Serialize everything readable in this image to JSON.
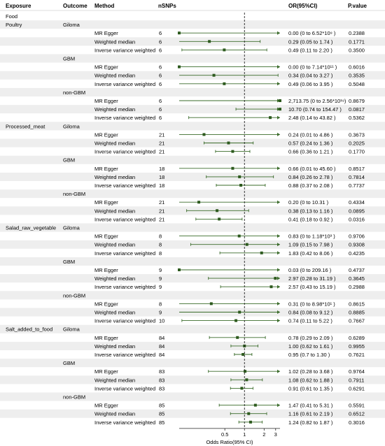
{
  "chart_data": {
    "type": "forest",
    "columns": {
      "exposure": "Exposure",
      "outcome": "Outcome",
      "method": "Method",
      "nsnps": "nSNPs",
      "or": "OR(95%CI)",
      "pvalue": "P.value"
    },
    "section_label": "Food",
    "xlabel": "Odds Ratio(95% CI)",
    "xticks": [
      0.5,
      1,
      2,
      3
    ],
    "xlim": [
      0.1,
      3.5
    ],
    "reference_line": 1,
    "colors": {
      "point": "#2d5a1e",
      "line": "#3a6b2a",
      "stripe": "#eeeeee"
    },
    "exposures": [
      {
        "name": "Poultry",
        "outcomes": [
          {
            "name": "Giloma",
            "rows": [
              {
                "method": "MR Egger",
                "nsnps": "6",
                "or_text": "0.00 (0 to  6.52*10⁹ )",
                "p": "0.2388",
                "est": 0.0,
                "lo": 0.0,
                "hi": 3.5,
                "hi_arrow": true
              },
              {
                "method": "Weighted median",
                "nsnps": "6",
                "or_text": "0.29 (0.05 to  1.74 )",
                "p": "0.1771",
                "est": 0.29,
                "lo": 0.05,
                "hi": 1.74,
                "hi_arrow": false
              },
              {
                "method": "Inverse variance weighted",
                "nsnps": "6",
                "or_text": "0.49 (0.11 to  2.20 )",
                "p": "0.3500",
                "est": 0.49,
                "lo": 0.11,
                "hi": 2.2,
                "hi_arrow": false
              }
            ]
          },
          {
            "name": "GBM",
            "rows": [
              {
                "method": "MR Egger",
                "nsnps": "6",
                "or_text": "0.00 (0 to  7.14*10¹¹ )",
                "p": "0.6016",
                "est": 0.0,
                "lo": 0.0,
                "hi": 3.5,
                "hi_arrow": true
              },
              {
                "method": "Weighted median",
                "nsnps": "6",
                "or_text": "0.34 (0.04 to  3.27 )",
                "p": "0.3535",
                "est": 0.34,
                "lo": 0.04,
                "hi": 3.27,
                "hi_arrow": false
              },
              {
                "method": "Inverse variance weighted",
                "nsnps": "6",
                "or_text": "0.49 (0.06 to  3.95 )",
                "p": "0.5048",
                "est": 0.49,
                "lo": 0.06,
                "hi": 3.95,
                "hi_arrow": true
              }
            ]
          },
          {
            "name": "non-GBM",
            "rows": [
              {
                "method": "MR Egger",
                "nsnps": "6",
                "or_text": "2,713.75 (0 to  2.56*10¹⁹)",
                "p": "0.8679",
                "est": 3.5,
                "lo": 0.0,
                "hi": 3.5,
                "hi_arrow": true
              },
              {
                "method": "Weighted median",
                "nsnps": "6",
                "or_text": "10.70 (0.74 to  154.47 )",
                "p": "0.0817",
                "est": 3.5,
                "lo": 0.74,
                "hi": 3.5,
                "hi_arrow": true
              },
              {
                "method": "Inverse variance weighted",
                "nsnps": "6",
                "or_text": "2.48 (0.14 to  43.82 )",
                "p": "0.5362",
                "est": 2.48,
                "lo": 0.14,
                "hi": 3.5,
                "hi_arrow": true
              }
            ]
          }
        ]
      },
      {
        "name": "Processed_meat",
        "outcomes": [
          {
            "name": "Giloma",
            "rows": [
              {
                "method": "MR Egger",
                "nsnps": "21",
                "or_text": "0.24 (0.01 to  4.86 )",
                "p": "0.3673",
                "est": 0.24,
                "lo": 0.01,
                "hi": 4.86,
                "hi_arrow": true
              },
              {
                "method": "Weighted median",
                "nsnps": "21",
                "or_text": "0.57 (0.24 to  1.36 )",
                "p": "0.2025",
                "est": 0.57,
                "lo": 0.24,
                "hi": 1.36,
                "hi_arrow": false
              },
              {
                "method": "Inverse variance weighted",
                "nsnps": "21",
                "or_text": "0.66 (0.36 to  1.21 )",
                "p": "0.1770",
                "est": 0.66,
                "lo": 0.36,
                "hi": 1.21,
                "hi_arrow": false
              }
            ]
          },
          {
            "name": "GBM",
            "rows": [
              {
                "method": "MR Egger",
                "nsnps": "18",
                "or_text": "0.66 (0.01 to  45.60 )",
                "p": "0.8517",
                "est": 0.66,
                "lo": 0.01,
                "hi": 45.6,
                "hi_arrow": true
              },
              {
                "method": "Weighted median",
                "nsnps": "18",
                "or_text": "0.84 (0.26 to  2.78 )",
                "p": "0.7814",
                "est": 0.84,
                "lo": 0.26,
                "hi": 2.78,
                "hi_arrow": false
              },
              {
                "method": "Inverse variance weighted",
                "nsnps": "18",
                "or_text": "0.88 (0.37 to  2.08 )",
                "p": "0.7737",
                "est": 0.88,
                "lo": 0.37,
                "hi": 2.08,
                "hi_arrow": false
              }
            ]
          },
          {
            "name": "non-GBM",
            "rows": [
              {
                "method": "MR Egger",
                "nsnps": "21",
                "or_text": "0.20 (0 to  10.31 )",
                "p": "0.4334",
                "est": 0.2,
                "lo": 0.0,
                "hi": 10.31,
                "hi_arrow": true
              },
              {
                "method": "Weighted median",
                "nsnps": "21",
                "or_text": "0.38 (0.13 to  1.16 )",
                "p": "0.0895",
                "est": 0.38,
                "lo": 0.13,
                "hi": 1.16,
                "hi_arrow": false
              },
              {
                "method": "Inverse variance weighted",
                "nsnps": "21",
                "or_text": "0.41 (0.18 to  0.92 )",
                "p": "0.0316",
                "est": 0.41,
                "lo": 0.18,
                "hi": 0.92,
                "hi_arrow": false
              }
            ]
          }
        ]
      },
      {
        "name": "Salad_raw_vegetable",
        "outcomes": [
          {
            "name": "Giloma",
            "rows": [
              {
                "method": "MR Egger",
                "nsnps": "8",
                "or_text": "0.83 (0 to  1.18*10³ )",
                "p": "0.9706",
                "est": 0.83,
                "lo": 0.0,
                "hi": 3.5,
                "hi_arrow": true
              },
              {
                "method": "Weighted median",
                "nsnps": "8",
                "or_text": "1.09 (0.15 to  7.98 )",
                "p": "0.9308",
                "est": 1.09,
                "lo": 0.15,
                "hi": 7.98,
                "hi_arrow": true
              },
              {
                "method": "Inverse variance weighted",
                "nsnps": "8",
                "or_text": "1.83 (0.42 to  8.06 )",
                "p": "0.4235",
                "est": 1.83,
                "lo": 0.42,
                "hi": 8.06,
                "hi_arrow": true
              }
            ]
          },
          {
            "name": "GBM",
            "rows": [
              {
                "method": "MR Egger",
                "nsnps": "9",
                "or_text": "0.03 (0 to  209.16 )",
                "p": "0.4737",
                "est": 0.03,
                "lo": 0.0,
                "hi": 209.16,
                "hi_arrow": true
              },
              {
                "method": "Weighted median",
                "nsnps": "9",
                "or_text": "2.97 (0.28 to  31.19 )",
                "p": "0.3645",
                "est": 2.97,
                "lo": 0.28,
                "hi": 31.19,
                "hi_arrow": true
              },
              {
                "method": "Inverse variance weighted",
                "nsnps": "9",
                "or_text": "2.57 (0.43 to  15.19 )",
                "p": "0.2988",
                "est": 2.57,
                "lo": 0.43,
                "hi": 15.19,
                "hi_arrow": true
              }
            ]
          },
          {
            "name": "non-GBM",
            "rows": [
              {
                "method": "MR Egger",
                "nsnps": "8",
                "or_text": "0.31 (0 to  8.98*10¹ )",
                "p": "0.8615",
                "est": 0.31,
                "lo": 0.0,
                "hi": 3.5,
                "hi_arrow": true
              },
              {
                "method": "Weighted median",
                "nsnps": "9",
                "or_text": "0.84 (0.08 to  9.12 )",
                "p": "0.8885",
                "est": 0.84,
                "lo": 0.08,
                "hi": 9.12,
                "hi_arrow": true
              },
              {
                "method": "Inverse variance weighted",
                "nsnps": "10",
                "or_text": "0.74 (0.11 to  5.22 )",
                "p": "0.7667",
                "est": 0.74,
                "lo": 0.11,
                "hi": 5.22,
                "hi_arrow": true
              }
            ]
          }
        ]
      },
      {
        "name": "Salt_added_to_food",
        "outcomes": [
          {
            "name": "Giloma",
            "rows": [
              {
                "method": "MR Egger",
                "nsnps": "84",
                "or_text": "0.78 (0.29 to  2.09 )",
                "p": "0.6289",
                "est": 0.78,
                "lo": 0.29,
                "hi": 2.09,
                "hi_arrow": false
              },
              {
                "method": "Weighted median",
                "nsnps": "84",
                "or_text": "1.00 (0.62 to  1.61 )",
                "p": "0.9955",
                "est": 1.0,
                "lo": 0.62,
                "hi": 1.61,
                "hi_arrow": false
              },
              {
                "method": "Inverse variance weighted",
                "nsnps": "84",
                "or_text": "0.95 (0.7 to  1.30 )",
                "p": "0.7621",
                "est": 0.95,
                "lo": 0.7,
                "hi": 1.3,
                "hi_arrow": false
              }
            ]
          },
          {
            "name": "GBM",
            "rows": [
              {
                "method": "MR Egger",
                "nsnps": "83",
                "or_text": "1.02 (0.28 to  3.68 )",
                "p": "0.9764",
                "est": 1.02,
                "lo": 0.28,
                "hi": 3.68,
                "hi_arrow": true
              },
              {
                "method": "Weighted median",
                "nsnps": "83",
                "or_text": "1.08 (0.62 to  1.88 )",
                "p": "0.7911",
                "est": 1.08,
                "lo": 0.62,
                "hi": 1.88,
                "hi_arrow": false
              },
              {
                "method": "Inverse variance weighted",
                "nsnps": "83",
                "or_text": "0.91 (0.61 to  1.35 )",
                "p": "0.6291",
                "est": 0.91,
                "lo": 0.61,
                "hi": 1.35,
                "hi_arrow": false
              }
            ]
          },
          {
            "name": "non-GBM",
            "rows": [
              {
                "method": "MR Egger",
                "nsnps": "85",
                "or_text": "1.47 (0.41 to  5.31 )",
                "p": "0.5591",
                "est": 1.47,
                "lo": 0.41,
                "hi": 5.31,
                "hi_arrow": true
              },
              {
                "method": "Weighted median",
                "nsnps": "85",
                "or_text": "1.16 (0.61 to  2.19 )",
                "p": "0.6512",
                "est": 1.16,
                "lo": 0.61,
                "hi": 2.19,
                "hi_arrow": false
              },
              {
                "method": "Inverse variance weighted",
                "nsnps": "85",
                "or_text": "1.24 (0.82 to  1.87 )",
                "p": "0.3016",
                "est": 1.24,
                "lo": 0.82,
                "hi": 1.87,
                "hi_arrow": false
              }
            ]
          }
        ]
      }
    ]
  }
}
